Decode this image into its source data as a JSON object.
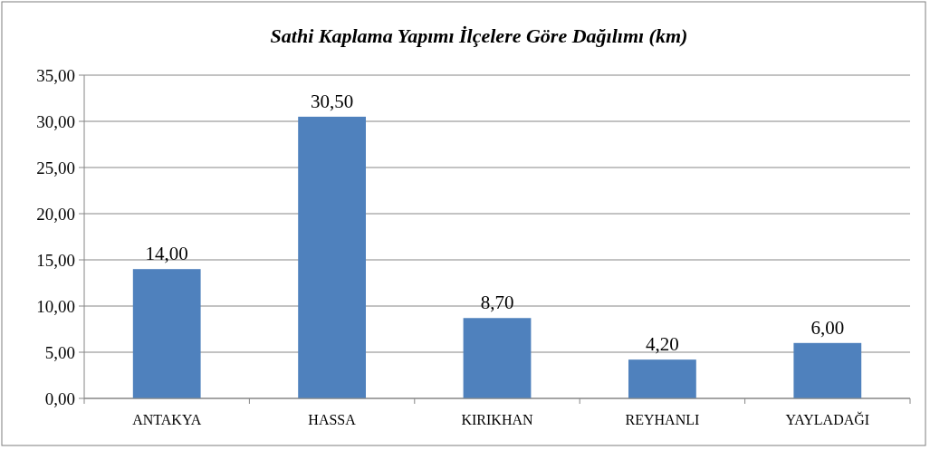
{
  "chart_data": {
    "type": "bar",
    "title": "Sathi Kaplama Yapımı İlçelere Göre Dağılımı (km)",
    "categories": [
      "ANTAKYA",
      "HASSA",
      "KIRIKHAN",
      "REYHANLI",
      "YAYLADAĞI"
    ],
    "values": [
      14,
      30.5,
      8.7,
      4.2,
      6
    ],
    "value_labels": [
      "14,00",
      "30,50",
      "8,70",
      "4,20",
      "6,00"
    ],
    "color": "#4f81bd",
    "ylim": [
      0,
      35
    ],
    "yticks": [
      {
        "value": 0,
        "label": "0,00"
      },
      {
        "value": 5,
        "label": "5,00"
      },
      {
        "value": 10,
        "label": "10,00"
      },
      {
        "value": 15,
        "label": "15,00"
      },
      {
        "value": 20,
        "label": "20,00"
      },
      {
        "value": 25,
        "label": "25,00"
      },
      {
        "value": 30,
        "label": "30,00"
      },
      {
        "value": 35,
        "label": "35,00"
      }
    ],
    "grid": "y"
  }
}
